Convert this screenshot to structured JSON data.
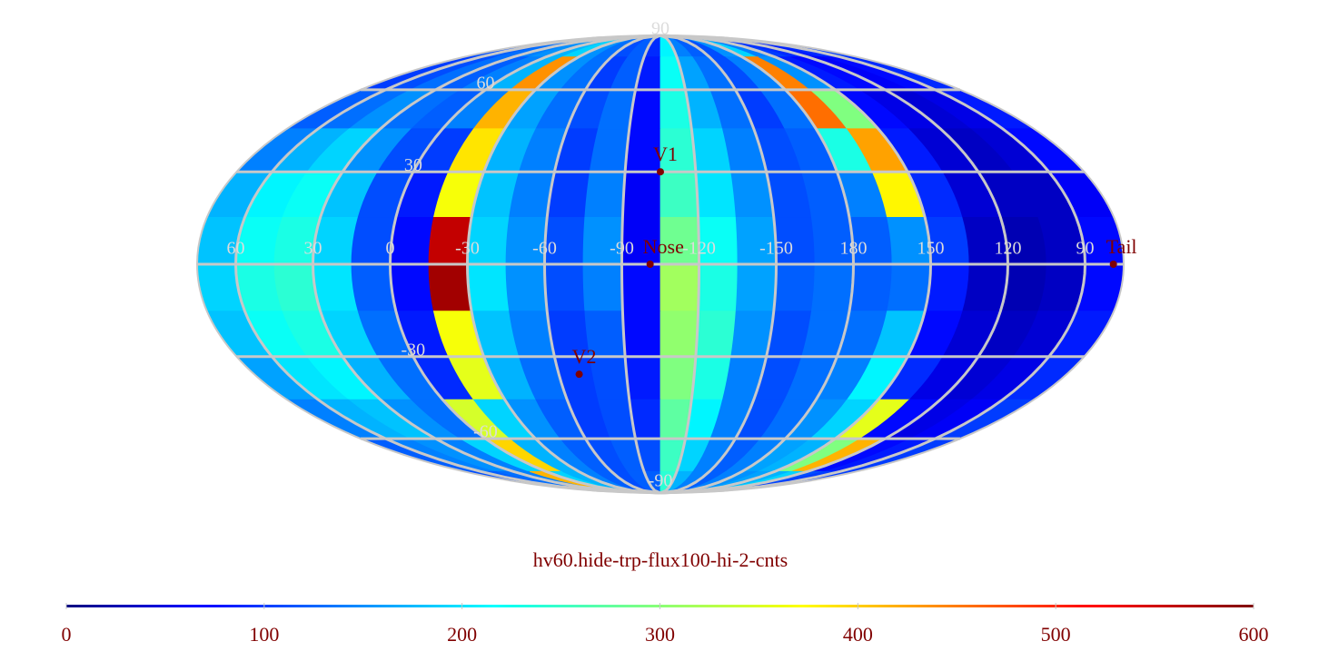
{
  "chart_data": {
    "type": "heatmap",
    "projection": "mollweide",
    "title": "hv60.hide-trp-flux100-hi-2-cnts",
    "colormap": "jet",
    "lon_bins": [
      75,
      60,
      45,
      30,
      15,
      0,
      -15,
      -30,
      -45,
      -60,
      -75,
      -90,
      -105,
      -120,
      -135,
      -150,
      -165,
      -180,
      165,
      150,
      135,
      120,
      105,
      90,
      75
    ],
    "lat_bins": [
      90,
      75,
      60,
      45,
      30,
      15,
      0,
      -15,
      -30,
      -45,
      -60,
      -75,
      -90
    ],
    "values": [
      [
        120,
        130,
        140,
        150,
        160,
        180,
        200,
        160,
        140,
        120,
        130,
        100,
        220,
        150,
        130,
        120,
        160,
        200,
        150,
        110,
        100,
        90,
        100,
        110
      ],
      [
        110,
        120,
        140,
        130,
        150,
        180,
        440,
        160,
        140,
        110,
        130,
        90,
        230,
        170,
        140,
        120,
        150,
        450,
        160,
        90,
        80,
        70,
        80,
        100
      ],
      [
        130,
        140,
        160,
        140,
        130,
        150,
        420,
        170,
        140,
        120,
        140,
        80,
        240,
        180,
        140,
        110,
        140,
        460,
        300,
        80,
        60,
        50,
        60,
        90
      ],
      [
        150,
        180,
        200,
        160,
        120,
        110,
        390,
        180,
        150,
        110,
        140,
        80,
        250,
        200,
        150,
        120,
        130,
        240,
        430,
        90,
        50,
        40,
        50,
        80
      ],
      [
        180,
        220,
        230,
        190,
        120,
        90,
        370,
        190,
        150,
        110,
        150,
        70,
        260,
        210,
        160,
        120,
        130,
        150,
        380,
        100,
        50,
        40,
        40,
        70
      ],
      [
        190,
        230,
        240,
        200,
        120,
        80,
        560,
        200,
        160,
        120,
        160,
        70,
        290,
        230,
        170,
        120,
        130,
        130,
        160,
        110,
        40,
        30,
        40,
        80
      ],
      [
        200,
        240,
        250,
        210,
        130,
        80,
        580,
        210,
        160,
        120,
        150,
        80,
        320,
        240,
        170,
        130,
        140,
        130,
        140,
        90,
        40,
        30,
        40,
        80
      ],
      [
        190,
        230,
        240,
        200,
        140,
        90,
        370,
        190,
        150,
        110,
        130,
        80,
        310,
        250,
        160,
        120,
        140,
        140,
        190,
        80,
        50,
        40,
        50,
        90
      ],
      [
        170,
        210,
        220,
        180,
        140,
        100,
        360,
        180,
        140,
        110,
        120,
        90,
        300,
        240,
        150,
        120,
        140,
        150,
        220,
        100,
        60,
        50,
        60,
        100
      ],
      [
        150,
        180,
        190,
        160,
        140,
        350,
        200,
        160,
        130,
        110,
        120,
        100,
        280,
        220,
        150,
        120,
        140,
        160,
        200,
        360,
        80,
        60,
        70,
        110
      ],
      [
        130,
        150,
        160,
        150,
        200,
        400,
        180,
        150,
        130,
        120,
        130,
        120,
        260,
        200,
        150,
        130,
        150,
        170,
        180,
        300,
        420,
        80,
        90,
        110
      ],
      [
        120,
        130,
        140,
        150,
        420,
        200,
        180,
        150,
        130,
        120,
        130,
        130,
        250,
        180,
        150,
        130,
        150,
        160,
        170,
        180,
        200,
        120,
        110,
        110
      ]
    ],
    "lonticks": [
      60,
      30,
      0,
      -30,
      -60,
      -90,
      -120,
      -150,
      180,
      150,
      120,
      90
    ],
    "latticks": [
      90,
      60,
      30,
      -30,
      -60,
      -90
    ],
    "grid": true,
    "markers": [
      {
        "label": "V1",
        "lon": -105,
        "lat": 30
      },
      {
        "label": "Nose",
        "lon": -101,
        "lat": 0
      },
      {
        "label": "V2",
        "lon": -69,
        "lat": -36
      },
      {
        "label": "Tail",
        "lon": 79,
        "lat": 0
      }
    ],
    "colorbar": {
      "lim": [
        0,
        600
      ],
      "ticks": [
        0,
        100,
        200,
        300,
        400,
        500,
        600
      ]
    }
  }
}
